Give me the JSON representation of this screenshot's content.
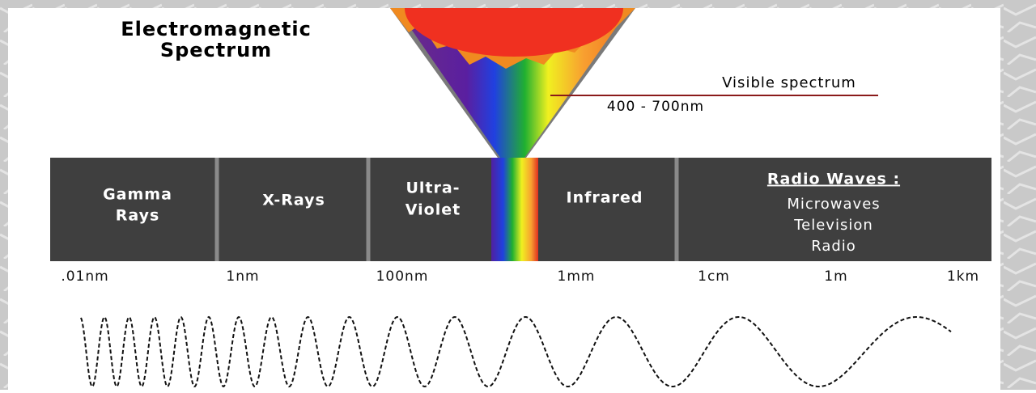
{
  "title": [
    "Electromagnetic",
    "Spectrum"
  ],
  "visible": {
    "label": "Visible spectrum",
    "range": "400 - 700nm"
  },
  "bands": [
    [
      "Gamma",
      "Rays"
    ],
    [
      "X-Rays"
    ],
    [
      "Ultra-",
      "Violet"
    ],
    [
      "Infrared"
    ]
  ],
  "radio": {
    "title": "Radio Waves :",
    "items": [
      "Microwaves",
      "Television",
      "Radio"
    ]
  },
  "scale": [
    ".01nm",
    "1nm",
    "100nm",
    "1mm",
    "1cm",
    "1m",
    "1km"
  ]
}
